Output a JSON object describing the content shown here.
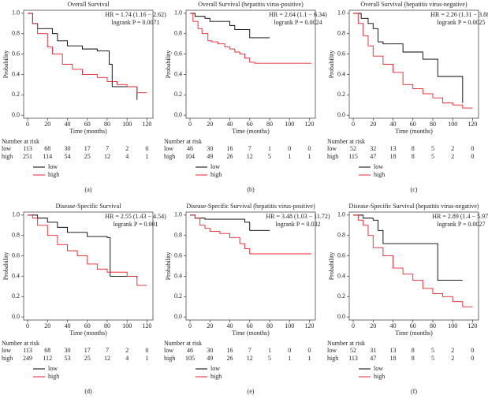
{
  "chart_data": [
    {
      "type": "step",
      "title": "Overall Survival",
      "annotations": [
        "HR = 1.74 (1.16 − 2.62)",
        "logrank P = 0.0071"
      ],
      "xlabel": "Time (months)",
      "ylabel": "Probability",
      "xlim": [
        -4,
        126
      ],
      "ylim": [
        -0.03,
        1.03
      ],
      "xticks": [
        0,
        20,
        40,
        60,
        80,
        100,
        120
      ],
      "yticks": [
        {
          "value": 0,
          "label": "0.0"
        },
        {
          "value": 0.2,
          "label": "0.2"
        },
        {
          "value": 0.4,
          "label": "0.4"
        },
        {
          "value": 0.6,
          "label": "0.6"
        },
        {
          "value": 0.8,
          "label": "0.8"
        },
        {
          "value": 1,
          "label": "1.0"
        }
      ],
      "series": [
        {
          "name": "low",
          "color": "#000000",
          "x": [
            0,
            5,
            10,
            25,
            30,
            40,
            55,
            70,
            82,
            85,
            105,
            110
          ],
          "values": [
            1,
            0.9,
            0.85,
            0.8,
            0.73,
            0.68,
            0.65,
            0.63,
            0.5,
            0.28,
            0.28,
            0.15
          ]
        },
        {
          "name": "high",
          "color": "#e8202a",
          "x": [
            0,
            5,
            10,
            20,
            25,
            35,
            45,
            55,
            70,
            80,
            90,
            100,
            110,
            120
          ],
          "values": [
            1,
            0.9,
            0.8,
            0.67,
            0.6,
            0.5,
            0.45,
            0.4,
            0.37,
            0.33,
            0.3,
            0.28,
            0.22,
            0.22
          ]
        }
      ],
      "risk_table": {
        "title": "Number at risk",
        "rows": [
          [
            113,
            68,
            30,
            17,
            7,
            2,
            0
          ],
          [
            251,
            114,
            54,
            25,
            12,
            4,
            1
          ]
        ]
      },
      "panel_label": "(a)"
    },
    {
      "type": "step",
      "title": "Overall Survival (hepatitis virus-positive)",
      "annotations": [
        "HR = 2.64 (1.1 − 6.34)",
        "logrank P = 0.0024"
      ],
      "xlabel": "Time (months)",
      "ylabel": "Probability",
      "xlim": [
        -4,
        126
      ],
      "ylim": [
        -0.03,
        1.03
      ],
      "xticks": [
        0,
        20,
        40,
        60,
        80,
        100,
        120
      ],
      "yticks": [
        {
          "value": 0,
          "label": "0.0"
        },
        {
          "value": 0.2,
          "label": "0.2"
        },
        {
          "value": 0.4,
          "label": "0.4"
        },
        {
          "value": 0.6,
          "label": "0.6"
        },
        {
          "value": 0.8,
          "label": "0.8"
        },
        {
          "value": 1,
          "label": "1.0"
        }
      ],
      "series": [
        {
          "name": "low",
          "color": "#000000",
          "x": [
            0,
            5,
            15,
            20,
            40,
            45,
            60,
            80
          ],
          "values": [
            1,
            0.97,
            0.95,
            0.92,
            0.88,
            0.84,
            0.76,
            0.76
          ]
        },
        {
          "name": "high",
          "color": "#e8202a",
          "x": [
            0,
            3,
            8,
            12,
            18,
            22,
            28,
            35,
            40,
            45,
            50,
            55,
            60,
            65,
            122
          ],
          "values": [
            1,
            0.92,
            0.85,
            0.8,
            0.73,
            0.72,
            0.7,
            0.67,
            0.65,
            0.62,
            0.6,
            0.56,
            0.52,
            0.51,
            0.51
          ]
        }
      ],
      "risk_table": {
        "title": "Number at risk",
        "rows": [
          [
            46,
            30,
            16,
            7,
            1,
            0,
            0
          ],
          [
            104,
            49,
            26,
            12,
            5,
            1,
            1
          ]
        ]
      },
      "panel_label": "(b)"
    },
    {
      "type": "step",
      "title": "Overall Survival (hepatitis virus-negative)",
      "annotations": [
        "HR = 2.26 (1.31 − 3.88)",
        "logrank P = 0.0025"
      ],
      "xlabel": "Time (months)",
      "ylabel": "Probability",
      "xlim": [
        -4,
        126
      ],
      "ylim": [
        -0.03,
        1.03
      ],
      "xticks": [
        0,
        20,
        40,
        60,
        80,
        100,
        120
      ],
      "yticks": [
        {
          "value": 0,
          "label": "0.0"
        },
        {
          "value": 0.2,
          "label": "0.2"
        },
        {
          "value": 0.4,
          "label": "0.4"
        },
        {
          "value": 0.6,
          "label": "0.6"
        },
        {
          "value": 0.8,
          "label": "0.8"
        },
        {
          "value": 1,
          "label": "1.0"
        }
      ],
      "series": [
        {
          "name": "low",
          "color": "#000000",
          "x": [
            0,
            8,
            15,
            20,
            25,
            30,
            50,
            70,
            85,
            110
          ],
          "values": [
            1,
            0.95,
            0.9,
            0.85,
            0.72,
            0.7,
            0.62,
            0.55,
            0.38,
            0.12
          ]
        },
        {
          "name": "high",
          "color": "#e8202a",
          "x": [
            0,
            5,
            10,
            15,
            20,
            30,
            40,
            50,
            60,
            70,
            80,
            90,
            100,
            110,
            120
          ],
          "values": [
            1,
            0.9,
            0.78,
            0.68,
            0.58,
            0.5,
            0.42,
            0.3,
            0.26,
            0.21,
            0.17,
            0.12,
            0.1,
            0.07,
            0.07
          ]
        }
      ],
      "risk_table": {
        "title": "Number at risk",
        "rows": [
          [
            52,
            32,
            13,
            8,
            5,
            2,
            0
          ],
          [
            115,
            47,
            18,
            8,
            5,
            2,
            0
          ]
        ]
      },
      "panel_label": "(c)"
    },
    {
      "type": "step",
      "title": "Disease-Specific Survival",
      "annotations": [
        "HR = 2.55 (1.43 − 4.54)",
        "logrank P = 0.001"
      ],
      "xlabel": "Time (months)",
      "ylabel": "Probability",
      "xlim": [
        -4,
        126
      ],
      "ylim": [
        -0.03,
        1.03
      ],
      "xticks": [
        0,
        20,
        40,
        60,
        80,
        100,
        120
      ],
      "yticks": [
        {
          "value": 0,
          "label": "0.0"
        },
        {
          "value": 0.2,
          "label": "0.2"
        },
        {
          "value": 0.4,
          "label": "0.4"
        },
        {
          "value": 0.6,
          "label": "0.6"
        },
        {
          "value": 0.8,
          "label": "0.8"
        },
        {
          "value": 1,
          "label": "1.0"
        }
      ],
      "series": [
        {
          "name": "low",
          "color": "#000000",
          "x": [
            0,
            10,
            20,
            30,
            40,
            60,
            80,
            83,
            110
          ],
          "values": [
            1,
            0.97,
            0.93,
            0.88,
            0.83,
            0.79,
            0.78,
            0.4,
            0.38
          ]
        },
        {
          "name": "high",
          "color": "#e8202a",
          "x": [
            0,
            5,
            10,
            20,
            30,
            40,
            50,
            60,
            70,
            80,
            100,
            110,
            120
          ],
          "values": [
            1,
            0.97,
            0.9,
            0.8,
            0.71,
            0.65,
            0.6,
            0.52,
            0.47,
            0.44,
            0.4,
            0.31,
            0.31
          ]
        }
      ],
      "risk_table": {
        "title": "Number at risk",
        "rows": [
          [
            113,
            68,
            30,
            17,
            7,
            2,
            0
          ],
          [
            249,
            112,
            53,
            25,
            12,
            4,
            1
          ]
        ]
      },
      "panel_label": "(d)"
    },
    {
      "type": "step",
      "title": "Disease-Specific Survival (hepatitis virus-positive)",
      "annotations": [
        "HR = 3.48 (1.03 − 11.72)",
        "logrank P = 0.032"
      ],
      "xlabel": "Time (months)",
      "ylabel": "Probability",
      "xlim": [
        -4,
        126
      ],
      "ylim": [
        -0.03,
        1.03
      ],
      "xticks": [
        0,
        20,
        40,
        60,
        80,
        100,
        120
      ],
      "yticks": [
        {
          "value": 0,
          "label": "0.0"
        },
        {
          "value": 0.2,
          "label": "0.2"
        },
        {
          "value": 0.4,
          "label": "0.4"
        },
        {
          "value": 0.6,
          "label": "0.6"
        },
        {
          "value": 0.8,
          "label": "0.8"
        },
        {
          "value": 1,
          "label": "1.0"
        }
      ],
      "series": [
        {
          "name": "low",
          "color": "#000000",
          "x": [
            0,
            5,
            15,
            55,
            60,
            80
          ],
          "values": [
            1,
            0.97,
            0.96,
            0.93,
            0.85,
            0.85
          ]
        },
        {
          "name": "high",
          "color": "#e8202a",
          "x": [
            0,
            5,
            10,
            15,
            20,
            30,
            40,
            50,
            55,
            60,
            122
          ],
          "values": [
            1,
            0.97,
            0.9,
            0.87,
            0.84,
            0.82,
            0.78,
            0.72,
            0.67,
            0.62,
            0.62
          ]
        }
      ],
      "risk_table": {
        "title": "Number at risk",
        "rows": [
          [
            46,
            30,
            16,
            7,
            1,
            0,
            0
          ],
          [
            105,
            49,
            26,
            12,
            5,
            1,
            1
          ]
        ]
      },
      "panel_label": "(e)"
    },
    {
      "type": "step",
      "title": "Disease-Specific Survival (hepatitis virus-negative)",
      "annotations": [
        "HR = 2.89 (1.4 − 5.97)",
        "logrank P = 0.0027"
      ],
      "xlabel": "Time (months)",
      "ylabel": "Probability",
      "xlim": [
        -4,
        126
      ],
      "ylim": [
        -0.03,
        1.03
      ],
      "xticks": [
        0,
        20,
        40,
        60,
        80,
        100,
        120
      ],
      "yticks": [
        {
          "value": 0,
          "label": "0.0"
        },
        {
          "value": 0.2,
          "label": "0.2"
        },
        {
          "value": 0.4,
          "label": "0.4"
        },
        {
          "value": 0.6,
          "label": "0.6"
        },
        {
          "value": 0.8,
          "label": "0.8"
        },
        {
          "value": 1,
          "label": "1.0"
        }
      ],
      "series": [
        {
          "name": "low",
          "color": "#000000",
          "x": [
            0,
            10,
            20,
            25,
            30,
            80,
            85,
            110
          ],
          "values": [
            1,
            0.97,
            0.95,
            0.85,
            0.72,
            0.72,
            0.36,
            0.36
          ]
        },
        {
          "name": "high",
          "color": "#e8202a",
          "x": [
            0,
            5,
            10,
            15,
            20,
            30,
            40,
            50,
            60,
            70,
            80,
            90,
            100,
            110,
            120
          ],
          "values": [
            1,
            0.95,
            0.9,
            0.8,
            0.68,
            0.6,
            0.48,
            0.42,
            0.36,
            0.28,
            0.23,
            0.2,
            0.15,
            0.1,
            0.1
          ]
        }
      ],
      "risk_table": {
        "title": "Number at risk",
        "rows": [
          [
            52,
            31,
            13,
            8,
            5,
            2,
            0
          ],
          [
            113,
            47,
            18,
            8,
            5,
            2,
            0
          ]
        ]
      },
      "panel_label": "(f)"
    }
  ]
}
